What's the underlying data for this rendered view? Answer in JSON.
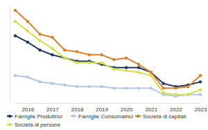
{
  "chart_data": {
    "type": "line",
    "categories": [
      null,
      "2016",
      null,
      "2017",
      null,
      "2018",
      null,
      "2019",
      null,
      "2020",
      null,
      "2021",
      null,
      "2022",
      null,
      "2023"
    ],
    "series": [
      {
        "name": "Famiglie Produttrici",
        "color": "#1f3864",
        "marker": "circle",
        "values": [
          4.9,
          4.5,
          4.0,
          3.7,
          3.5,
          3.3,
          3.3,
          3.1,
          2.9,
          2.9,
          2.9,
          2.6,
          1.9,
          1.7,
          1.8,
          2.0
        ]
      },
      {
        "name": "Famiglie Consumatrici",
        "color": "#b4c7e7",
        "marker": "circle",
        "values": [
          2.4,
          2.3,
          2.0,
          1.9,
          1.8,
          1.7,
          1.7,
          1.7,
          1.6,
          1.6,
          1.6,
          1.6,
          1.2,
          1.1,
          1.2,
          1.2
        ]
      },
      {
        "name": "Società di capitali",
        "color": "#d9822b",
        "marker": "circle",
        "values": [
          6.5,
          5.8,
          5.0,
          4.8,
          4.0,
          3.9,
          3.7,
          3.7,
          3.4,
          3.5,
          3.1,
          2.6,
          1.6,
          1.6,
          1.7,
          2.4
        ]
      },
      {
        "name": "Società di persone",
        "color": "#d4df4a",
        "marker": "circle",
        "values": [
          5.8,
          5.2,
          4.6,
          4.1,
          3.5,
          3.2,
          3.2,
          3.2,
          2.8,
          2.7,
          2.6,
          2.4,
          1.3,
          1.2,
          1.2,
          1.5
        ]
      }
    ],
    "ylim": [
      0.8,
      6.8
    ],
    "grid": false,
    "legend": "bottom",
    "tick_labels": "x"
  }
}
